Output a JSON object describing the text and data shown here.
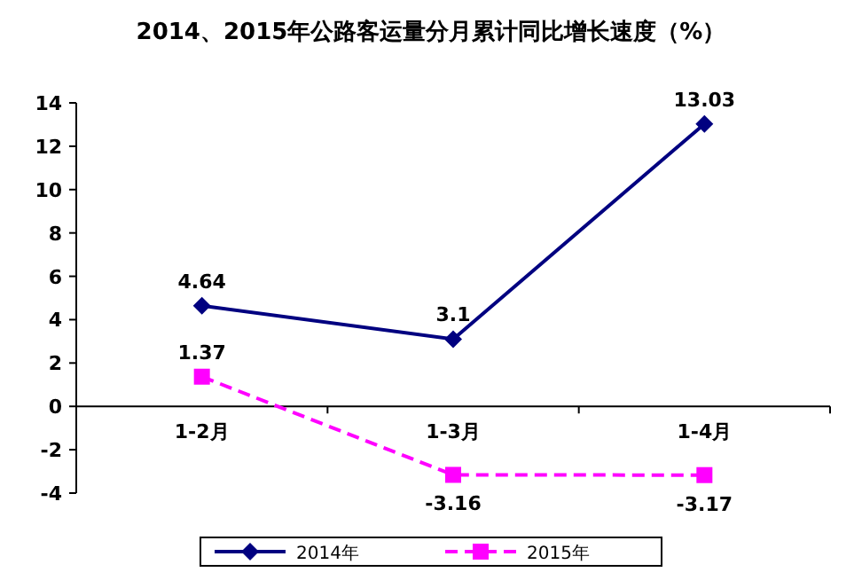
{
  "chart_data": {
    "type": "line",
    "title": "2014、2015年公路客运量分月累计同比增长速度（%）",
    "categories": [
      "1-2月",
      "1-3月",
      "1-4月"
    ],
    "series": [
      {
        "name": "2014年",
        "color": "#000080",
        "values": [
          4.64,
          3.1,
          13.03
        ],
        "marker": "diamond",
        "line_style": "solid"
      },
      {
        "name": "2015年",
        "color": "#ff00ff",
        "values": [
          1.37,
          -3.16,
          -3.17
        ],
        "marker": "square",
        "line_style": "dashed"
      }
    ],
    "ylim": [
      -4,
      14
    ],
    "yticks": [
      -4,
      -2,
      0,
      2,
      4,
      6,
      8,
      10,
      12,
      14
    ],
    "data_labels": true,
    "grid": false,
    "legend": "bottom"
  }
}
